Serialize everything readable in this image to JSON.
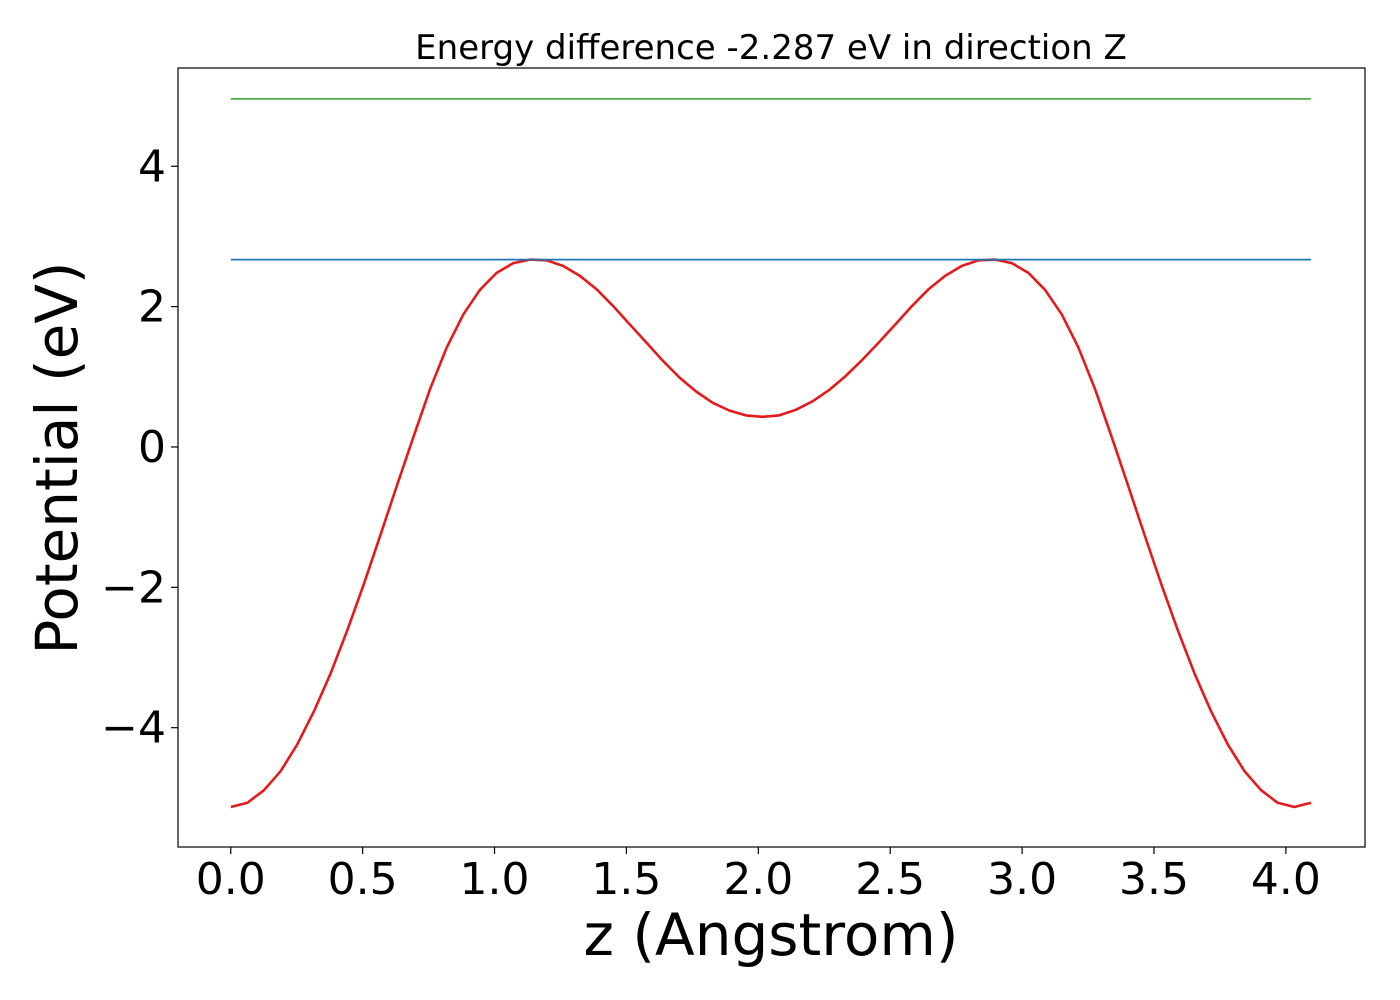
{
  "chart_data": {
    "type": "line",
    "title": "Energy difference -2.287 eV in direction Z",
    "xlabel": "z (Angstrom)",
    "ylabel": "Potential (eV)",
    "xlim": [
      -0.2,
      4.3
    ],
    "ylim": [
      -5.7,
      5.4
    ],
    "x_ticks": [
      {
        "value": 0.0,
        "label": "0.0"
      },
      {
        "value": 0.5,
        "label": "0.5"
      },
      {
        "value": 1.0,
        "label": "1.0"
      },
      {
        "value": 1.5,
        "label": "1.5"
      },
      {
        "value": 2.0,
        "label": "2.0"
      },
      {
        "value": 2.5,
        "label": "2.5"
      },
      {
        "value": 3.0,
        "label": "3.0"
      },
      {
        "value": 3.5,
        "label": "3.5"
      },
      {
        "value": 4.0,
        "label": "4.0"
      }
    ],
    "y_ticks": [
      {
        "value": -4,
        "label": "−4"
      },
      {
        "value": -2,
        "label": "−2"
      },
      {
        "value": 0,
        "label": "0"
      },
      {
        "value": 2,
        "label": "2"
      },
      {
        "value": 4,
        "label": "4"
      }
    ],
    "grid": false,
    "series": [
      {
        "color": "#e41a1c",
        "x": [
          0.0,
          0.063,
          0.126,
          0.189,
          0.252,
          0.315,
          0.378,
          0.441,
          0.504,
          0.567,
          0.63,
          0.693,
          0.756,
          0.819,
          0.882,
          0.945,
          1.008,
          1.071,
          1.134,
          1.197,
          1.26,
          1.323,
          1.386,
          1.449,
          1.512,
          1.575,
          1.638,
          1.701,
          1.764,
          1.827,
          1.89,
          1.953,
          2.016,
          2.079,
          2.142,
          2.205,
          2.268,
          2.331,
          2.394,
          2.457,
          2.52,
          2.583,
          2.646,
          2.709,
          2.772,
          2.835,
          2.898,
          2.961,
          3.024,
          3.087,
          3.15,
          3.213,
          3.276,
          3.339,
          3.402,
          3.465,
          3.528,
          3.591,
          3.654,
          3.717,
          3.78,
          3.843,
          3.906,
          3.969,
          4.032,
          4.095
        ],
        "y": [
          -5.13,
          -5.07,
          -4.89,
          -4.62,
          -4.24,
          -3.77,
          -3.23,
          -2.62,
          -1.96,
          -1.26,
          -0.55,
          0.15,
          0.83,
          1.42,
          1.89,
          2.24,
          2.48,
          2.62,
          2.67,
          2.66,
          2.58,
          2.44,
          2.25,
          2.01,
          1.75,
          1.49,
          1.23,
          0.99,
          0.79,
          0.63,
          0.52,
          0.45,
          0.43,
          0.45,
          0.53,
          0.65,
          0.81,
          1.01,
          1.24,
          1.49,
          1.75,
          2.01,
          2.25,
          2.44,
          2.58,
          2.66,
          2.67,
          2.62,
          2.48,
          2.24,
          1.89,
          1.42,
          0.83,
          0.15,
          -0.55,
          -1.26,
          -1.96,
          -2.62,
          -3.23,
          -3.77,
          -4.24,
          -4.62,
          -4.89,
          -5.07,
          -5.13,
          -5.07
        ]
      },
      {
        "color": "#1f77b4",
        "x": [
          0.0,
          4.095
        ],
        "y": [
          2.67,
          2.67
        ]
      },
      {
        "color": "#4daf4a",
        "x": [
          0.0,
          4.095
        ],
        "y": [
          4.96,
          4.96
        ]
      }
    ]
  }
}
